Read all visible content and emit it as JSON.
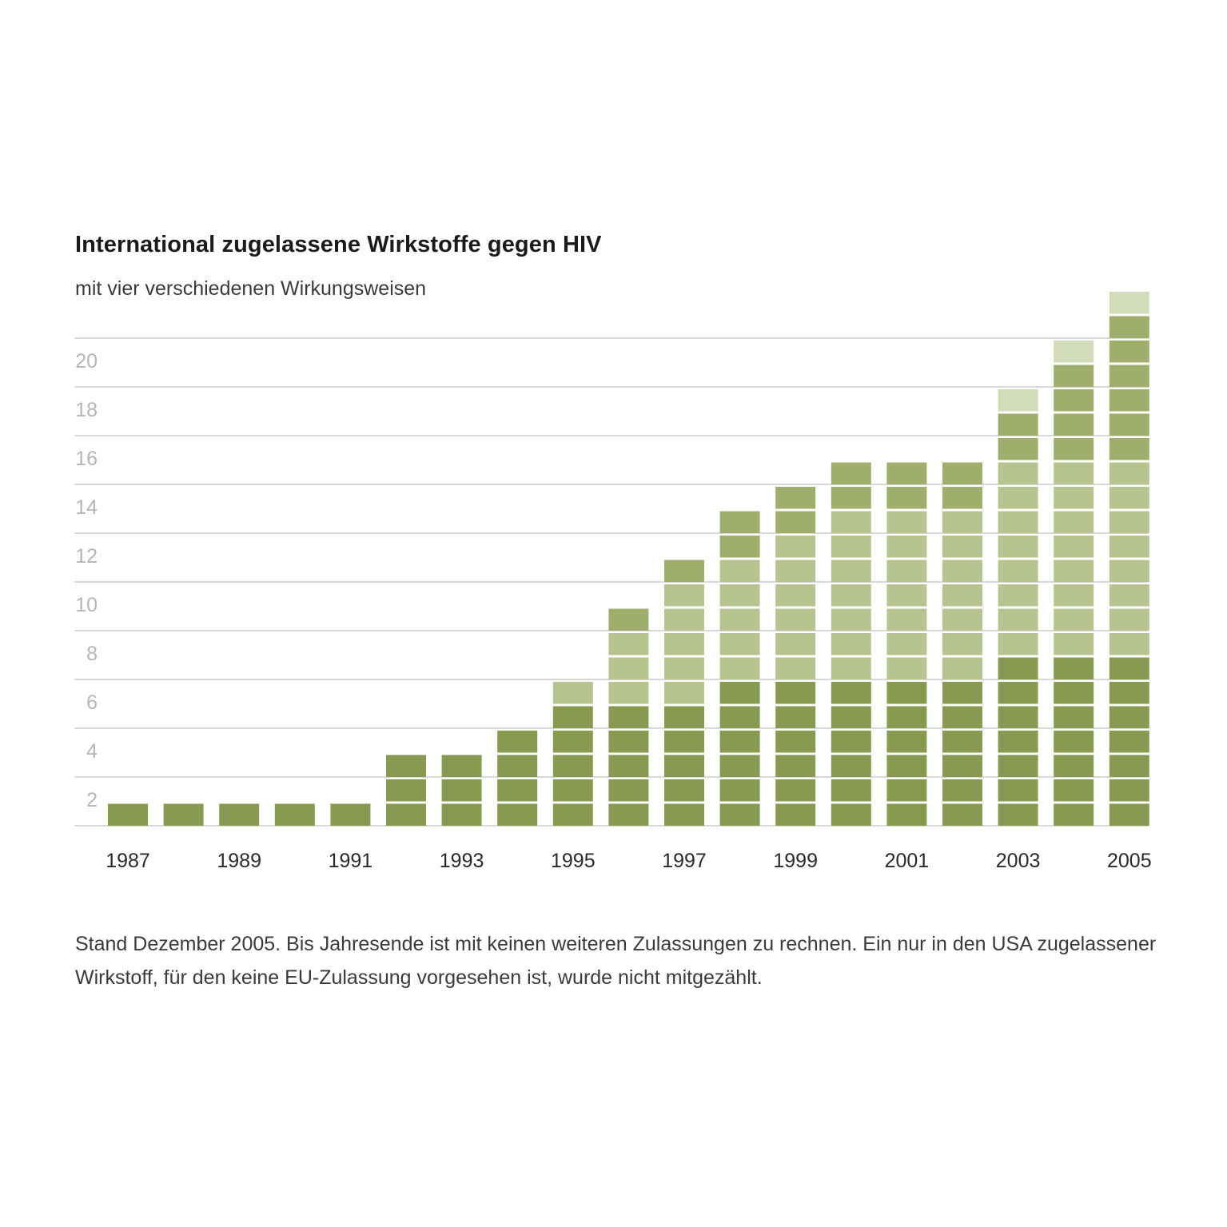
{
  "title": "International zugelassene Wirkstoffe gegen HIV",
  "subtitle": "mit vier verschiedenen Wirkungsweisen",
  "footnote": "Stand Dezember 2005. Bis Jahresende ist mit keinen weiteren Zulassungen zu rechnen. Ein nur in den USA zugelassener Wirkstoff, für den keine EU-Zulassung vorgesehen ist, wurde nicht mitgezählt.",
  "colors": {
    "segment_1": "#889a4f",
    "segment_2": "#b8c48f",
    "segment_3": "#a0ae6c",
    "segment_4": "#d2dbba",
    "grid": "#d9d9d9",
    "y_tick": "#b5b5b5",
    "x_tick": "#2a2a2a"
  },
  "chart_data": {
    "type": "bar",
    "stacked": true,
    "categories": [
      "1987",
      "1988",
      "1989",
      "1990",
      "1991",
      "1992",
      "1993",
      "1994",
      "1995",
      "1996",
      "1997",
      "1998",
      "1999",
      "2000",
      "2001",
      "2002",
      "2003",
      "2004",
      "2005"
    ],
    "x_tick_labels": [
      "1987",
      "1989",
      "1991",
      "1993",
      "1995",
      "1997",
      "1999",
      "2001",
      "2003",
      "2005"
    ],
    "series": [
      {
        "values": [
          1,
          1,
          1,
          1,
          1,
          3,
          3,
          4,
          5,
          5,
          5,
          6,
          6,
          6,
          6,
          6,
          7,
          7,
          7
        ]
      },
      {
        "values": [
          0,
          0,
          0,
          0,
          0,
          0,
          0,
          0,
          1,
          3,
          5,
          5,
          6,
          7,
          7,
          7,
          8,
          8,
          8
        ]
      },
      {
        "values": [
          0,
          0,
          0,
          0,
          0,
          0,
          0,
          0,
          0,
          1,
          1,
          2,
          2,
          2,
          2,
          2,
          2,
          4,
          6
        ]
      },
      {
        "values": [
          0,
          0,
          0,
          0,
          0,
          0,
          0,
          0,
          0,
          0,
          0,
          0,
          0,
          0,
          0,
          0,
          1,
          1,
          1
        ]
      }
    ],
    "y_ticks": [
      2,
      4,
      6,
      8,
      10,
      12,
      14,
      16,
      18,
      20
    ],
    "ylim": [
      0,
      21
    ],
    "grid": true
  }
}
